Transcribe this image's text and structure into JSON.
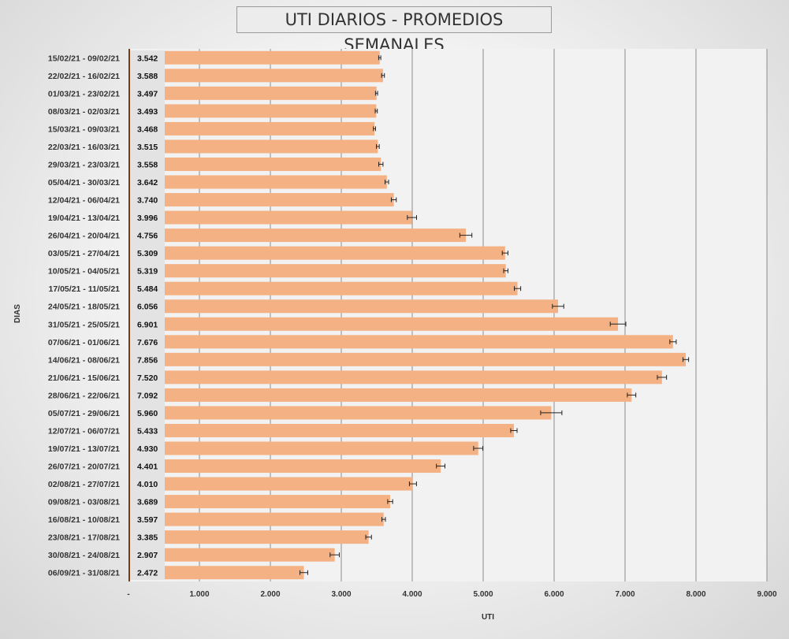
{
  "chart_data": {
    "type": "bar",
    "orientation": "horizontal",
    "title": "UTI DIARIOS - PROMEDIOS SEMANALES",
    "xlabel": "UTI",
    "ylabel": "DIAS",
    "xlim": [
      0,
      9000
    ],
    "x_ticks": [
      0,
      1000,
      2000,
      3000,
      4000,
      5000,
      6000,
      7000,
      8000,
      9000
    ],
    "x_tick_labels": [
      "-",
      "1.000",
      "2.000",
      "3.000",
      "4.000",
      "5.000",
      "6.000",
      "7.000",
      "8.000",
      "9.000"
    ],
    "grid": "vertical",
    "bar_color": "#F4B183",
    "error_bars": true,
    "categories": [
      "15/02/21 - 09/02/21",
      "22/02/21 - 16/02/21",
      "01/03/21 - 23/02/21",
      "08/03/21 - 02/03/21",
      "15/03/21 - 09/03/21",
      "22/03/21 - 16/03/21",
      "29/03/21 - 23/03/21",
      "05/04/21 - 30/03/21",
      "12/04/21 - 06/04/21",
      "19/04/21 - 13/04/21",
      "26/04/21 - 20/04/21",
      "03/05/21 - 27/04/21",
      "10/05/21 - 04/05/21",
      "17/05/21 - 11/05/21",
      "24/05/21 - 18/05/21",
      "31/05/21 - 25/05/21",
      "07/06/21 - 01/06/21",
      "14/06/21 - 08/06/21",
      "21/06/21 - 15/06/21",
      "28/06/21 - 22/06/21",
      "05/07/21 - 29/06/21",
      "12/07/21 - 06/07/21",
      "19/07/21 - 13/07/21",
      "26/07/21 - 20/07/21",
      "02/08/21 - 27/07/21",
      "09/08/21 - 03/08/21",
      "16/08/21 - 10/08/21",
      "23/08/21 - 17/08/21",
      "30/08/21 - 24/08/21",
      "06/09/21 - 31/08/21"
    ],
    "values": [
      3542,
      3588,
      3497,
      3493,
      3468,
      3515,
      3558,
      3642,
      3740,
      3996,
      4756,
      5309,
      5319,
      5484,
      6056,
      6901,
      7676,
      7856,
      7520,
      7092,
      5960,
      5433,
      4930,
      4401,
      4010,
      3689,
      3597,
      3385,
      2907,
      2472
    ],
    "value_labels": [
      "3.542",
      "3.588",
      "3.497",
      "3.493",
      "3.468",
      "3.515",
      "3.558",
      "3.642",
      "3.740",
      "3.996",
      "4.756",
      "5.309",
      "5.319",
      "5.484",
      "6.056",
      "6.901",
      "7.676",
      "7.856",
      "7.520",
      "7.092",
      "5.960",
      "5.433",
      "4.930",
      "4.401",
      "4.010",
      "3.689",
      "3.597",
      "3.385",
      "2.907",
      "2.472"
    ],
    "errors": [
      15,
      20,
      15,
      15,
      15,
      20,
      30,
      25,
      35,
      65,
      85,
      40,
      30,
      45,
      80,
      110,
      45,
      40,
      65,
      60,
      150,
      45,
      65,
      60,
      50,
      35,
      25,
      40,
      65,
      55
    ]
  }
}
